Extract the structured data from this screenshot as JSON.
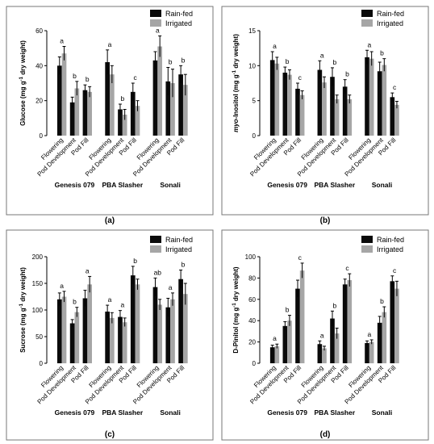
{
  "legend": {
    "rainfed": "Rain-fed",
    "irrigated": "Irrigated"
  },
  "colors": {
    "rainfed": "#0a0a0a",
    "irrigated": "#a6a6a6"
  },
  "ylabel_unit": "(mg g",
  "ylabel_sup": "-1",
  "ylabel_tail": "dry weight)",
  "chart_data": [
    {
      "id": "a",
      "type": "bar",
      "panel_label": "(a)",
      "ylabel_prefix": "Glucose ",
      "ylabel_italic": "",
      "ylim": [
        0,
        60
      ],
      "yticks": [
        0,
        20,
        40,
        60
      ],
      "groups": [
        "Genesis 079",
        "PBA Slasher",
        "Sonali"
      ],
      "categories": [
        "Flowering",
        "Pod Development",
        "Pod Fill"
      ],
      "series": [
        {
          "name": "Rain-fed",
          "values": [
            [
              40,
              19,
              26
            ],
            [
              42,
              15,
              25
            ],
            [
              43,
              31,
              35
            ]
          ],
          "errors": [
            [
              5,
              3,
              3
            ],
            [
              7,
              3,
              5
            ],
            [
              5,
              8,
              5
            ]
          ]
        },
        {
          "name": "Irrigated",
          "values": [
            [
              47,
              27,
              25
            ],
            [
              35,
              12,
              17
            ],
            [
              51,
              30,
              29
            ]
          ],
          "errors": [
            [
              4,
              4,
              3
            ],
            [
              5,
              3,
              3
            ],
            [
              6,
              8,
              6
            ]
          ]
        }
      ],
      "sig": [
        [
          "a",
          "b",
          "b"
        ],
        [
          "a",
          "b",
          "c"
        ],
        [
          "a",
          "b",
          "b"
        ]
      ]
    },
    {
      "id": "b",
      "type": "bar",
      "panel_label": "(b)",
      "ylabel_prefix": "",
      "ylabel_italic": "myo",
      "ylabel_after_italic": "-Inositol ",
      "ylim": [
        0,
        15
      ],
      "yticks": [
        0,
        5,
        10,
        15
      ],
      "groups": [
        "Genesis 079",
        "PBA Slasher",
        "Sonali"
      ],
      "categories": [
        "Flowering",
        "Pod Development",
        "Pod Fill"
      ],
      "series": [
        {
          "name": "Rain-fed",
          "values": [
            [
              10.8,
              9.0,
              6.7
            ],
            [
              9.4,
              8.4,
              7.0
            ],
            [
              11.2,
              9.2,
              5.5
            ]
          ],
          "errors": [
            [
              1.2,
              0.8,
              0.8
            ],
            [
              1.3,
              1.3,
              1.0
            ],
            [
              1.0,
              1.3,
              0.6
            ]
          ]
        },
        {
          "name": "Irrigated",
          "values": [
            [
              10.3,
              8.7,
              5.8
            ],
            [
              7.6,
              5.2,
              5.2
            ],
            [
              11.0,
              10.1,
              4.4
            ]
          ],
          "errors": [
            [
              0.9,
              0.7,
              0.6
            ],
            [
              0.8,
              0.6,
              0.6
            ],
            [
              1.0,
              0.9,
              0.5
            ]
          ]
        }
      ],
      "sig": [
        [
          "a",
          "b",
          "c"
        ],
        [
          "a",
          "b",
          "b"
        ],
        [
          "a",
          "b",
          "c"
        ]
      ]
    },
    {
      "id": "c",
      "type": "bar",
      "panel_label": "(c)",
      "ylabel_prefix": "Sucrose ",
      "ylabel_italic": "",
      "ylim": [
        0,
        200
      ],
      "yticks": [
        0,
        50,
        100,
        150,
        200
      ],
      "groups": [
        "Genesis 079",
        "PBA Slasher",
        "Sonali"
      ],
      "categories": [
        "Flowering",
        "Pod Development",
        "Pod Fill"
      ],
      "series": [
        {
          "name": "Rain-fed",
          "values": [
            [
              120,
              75,
              122
            ],
            [
              97,
              87,
              165
            ],
            [
              143,
              105,
              158
            ]
          ],
          "errors": [
            [
              12,
              7,
              15
            ],
            [
              12,
              12,
              17
            ],
            [
              17,
              17,
              17
            ]
          ]
        },
        {
          "name": "Irrigated",
          "values": [
            [
              125,
              96,
              148
            ],
            [
              85,
              77,
              148
            ],
            [
              110,
              120,
              130
            ]
          ],
          "errors": [
            [
              10,
              9,
              15
            ],
            [
              10,
              8,
              10
            ],
            [
              10,
              12,
              20
            ]
          ]
        }
      ],
      "sig": [
        [
          "a",
          "b",
          "a"
        ],
        [
          "a",
          "a",
          "b"
        ],
        [
          "ab",
          "a",
          "b"
        ]
      ]
    },
    {
      "id": "d",
      "type": "bar",
      "panel_label": "(d)",
      "ylabel_prefix": "D-Pinitol ",
      "ylabel_italic": "",
      "ylim": [
        0,
        100
      ],
      "yticks": [
        0,
        20,
        40,
        60,
        80,
        100
      ],
      "groups": [
        "Genesis 079",
        "PBA Slasher",
        "Sonali"
      ],
      "categories": [
        "Flowering",
        "Pod Development",
        "Pod Fill"
      ],
      "series": [
        {
          "name": "Rain-fed",
          "values": [
            [
              15,
              35,
              70
            ],
            [
              18,
              42,
              74
            ],
            [
              19,
              38,
              77
            ]
          ],
          "errors": [
            [
              2,
              4,
              8
            ],
            [
              3,
              7,
              5
            ],
            [
              2,
              6,
              5
            ]
          ]
        },
        {
          "name": "Irrigated",
          "values": [
            [
              16,
              40,
              87
            ],
            [
              14,
              28,
              78
            ],
            [
              20,
              48,
              70
            ]
          ],
          "errors": [
            [
              2,
              5,
              7
            ],
            [
              2,
              5,
              6
            ],
            [
              2,
              5,
              7
            ]
          ]
        }
      ],
      "sig": [
        [
          "a",
          "b",
          "c"
        ],
        [
          "a",
          "b",
          "c"
        ],
        [
          "a",
          "b",
          "c"
        ]
      ]
    }
  ]
}
